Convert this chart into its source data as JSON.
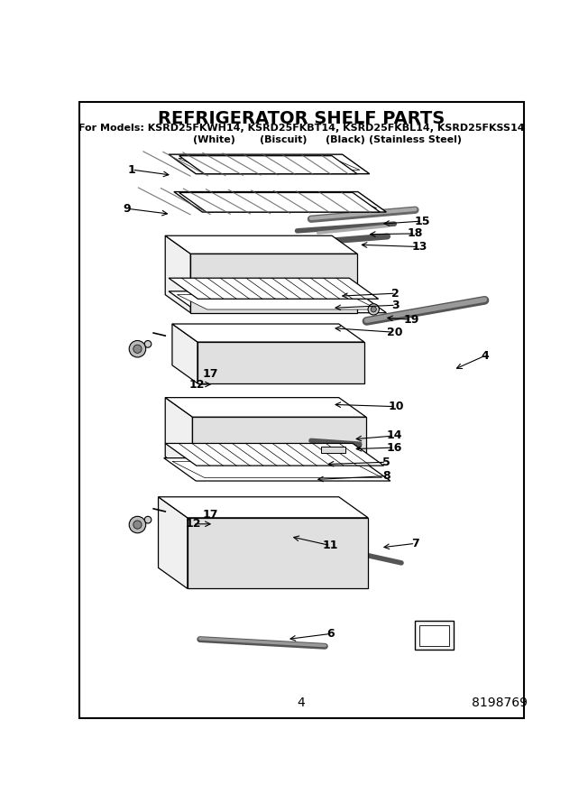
{
  "title": "REFRIGERATOR SHELF PARTS",
  "sub1": "For Models: KSRD25FKWH14, KSRD25FKBT14, KSRD25FKBL14, KSRD25FKSS14",
  "sub2a": "(White)",
  "sub2b": "(Biscuit)",
  "sub2c": "(Black)",
  "sub2d": "(Stainless Steel)",
  "page_number": "4",
  "doc_number": "8198769",
  "bg_color": "#ffffff",
  "figsize": [
    6.52,
    9.0
  ],
  "dpi": 100
}
